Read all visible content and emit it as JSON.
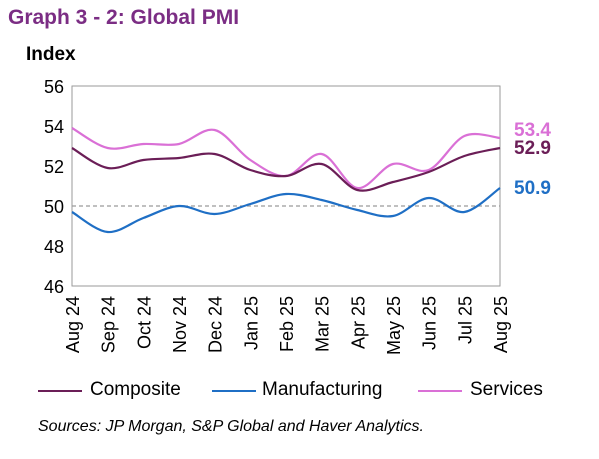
{
  "chart_data": {
    "type": "line",
    "title": "Graph 3 - 2: Global PMI",
    "ylabel": "Index",
    "xlabel": "",
    "categories": [
      "Aug 24",
      "Sep 24",
      "Oct 24",
      "Nov 24",
      "Dec 24",
      "Jan 25",
      "Feb 25",
      "Mar 25",
      "Apr 25",
      "May 25",
      "Jun 25",
      "Jul 25",
      "Aug 25"
    ],
    "yticks": [
      46,
      48,
      50,
      52,
      54,
      56
    ],
    "ylim": [
      46,
      56
    ],
    "reference_line": 50,
    "legend_position": "bottom",
    "grid": false,
    "series": [
      {
        "name": "Composite",
        "color": "#6B1E57",
        "values": [
          52.9,
          51.9,
          52.3,
          52.4,
          52.6,
          51.8,
          51.5,
          52.1,
          50.8,
          51.2,
          51.7,
          52.5,
          52.9
        ],
        "end_label": "52.9"
      },
      {
        "name": "Manufacturing",
        "color": "#1F6FC5",
        "values": [
          49.7,
          48.7,
          49.4,
          50.0,
          49.6,
          50.1,
          50.6,
          50.3,
          49.8,
          49.5,
          50.4,
          49.7,
          50.9
        ],
        "end_label": "50.9"
      },
      {
        "name": "Services",
        "color": "#DA70D6",
        "values": [
          53.9,
          52.9,
          53.1,
          53.1,
          53.8,
          52.3,
          51.5,
          52.6,
          50.9,
          52.1,
          51.8,
          53.5,
          53.4
        ],
        "end_label": "53.4"
      }
    ],
    "source": "Sources: JP Morgan, S&P Global and Haver Analytics."
  }
}
